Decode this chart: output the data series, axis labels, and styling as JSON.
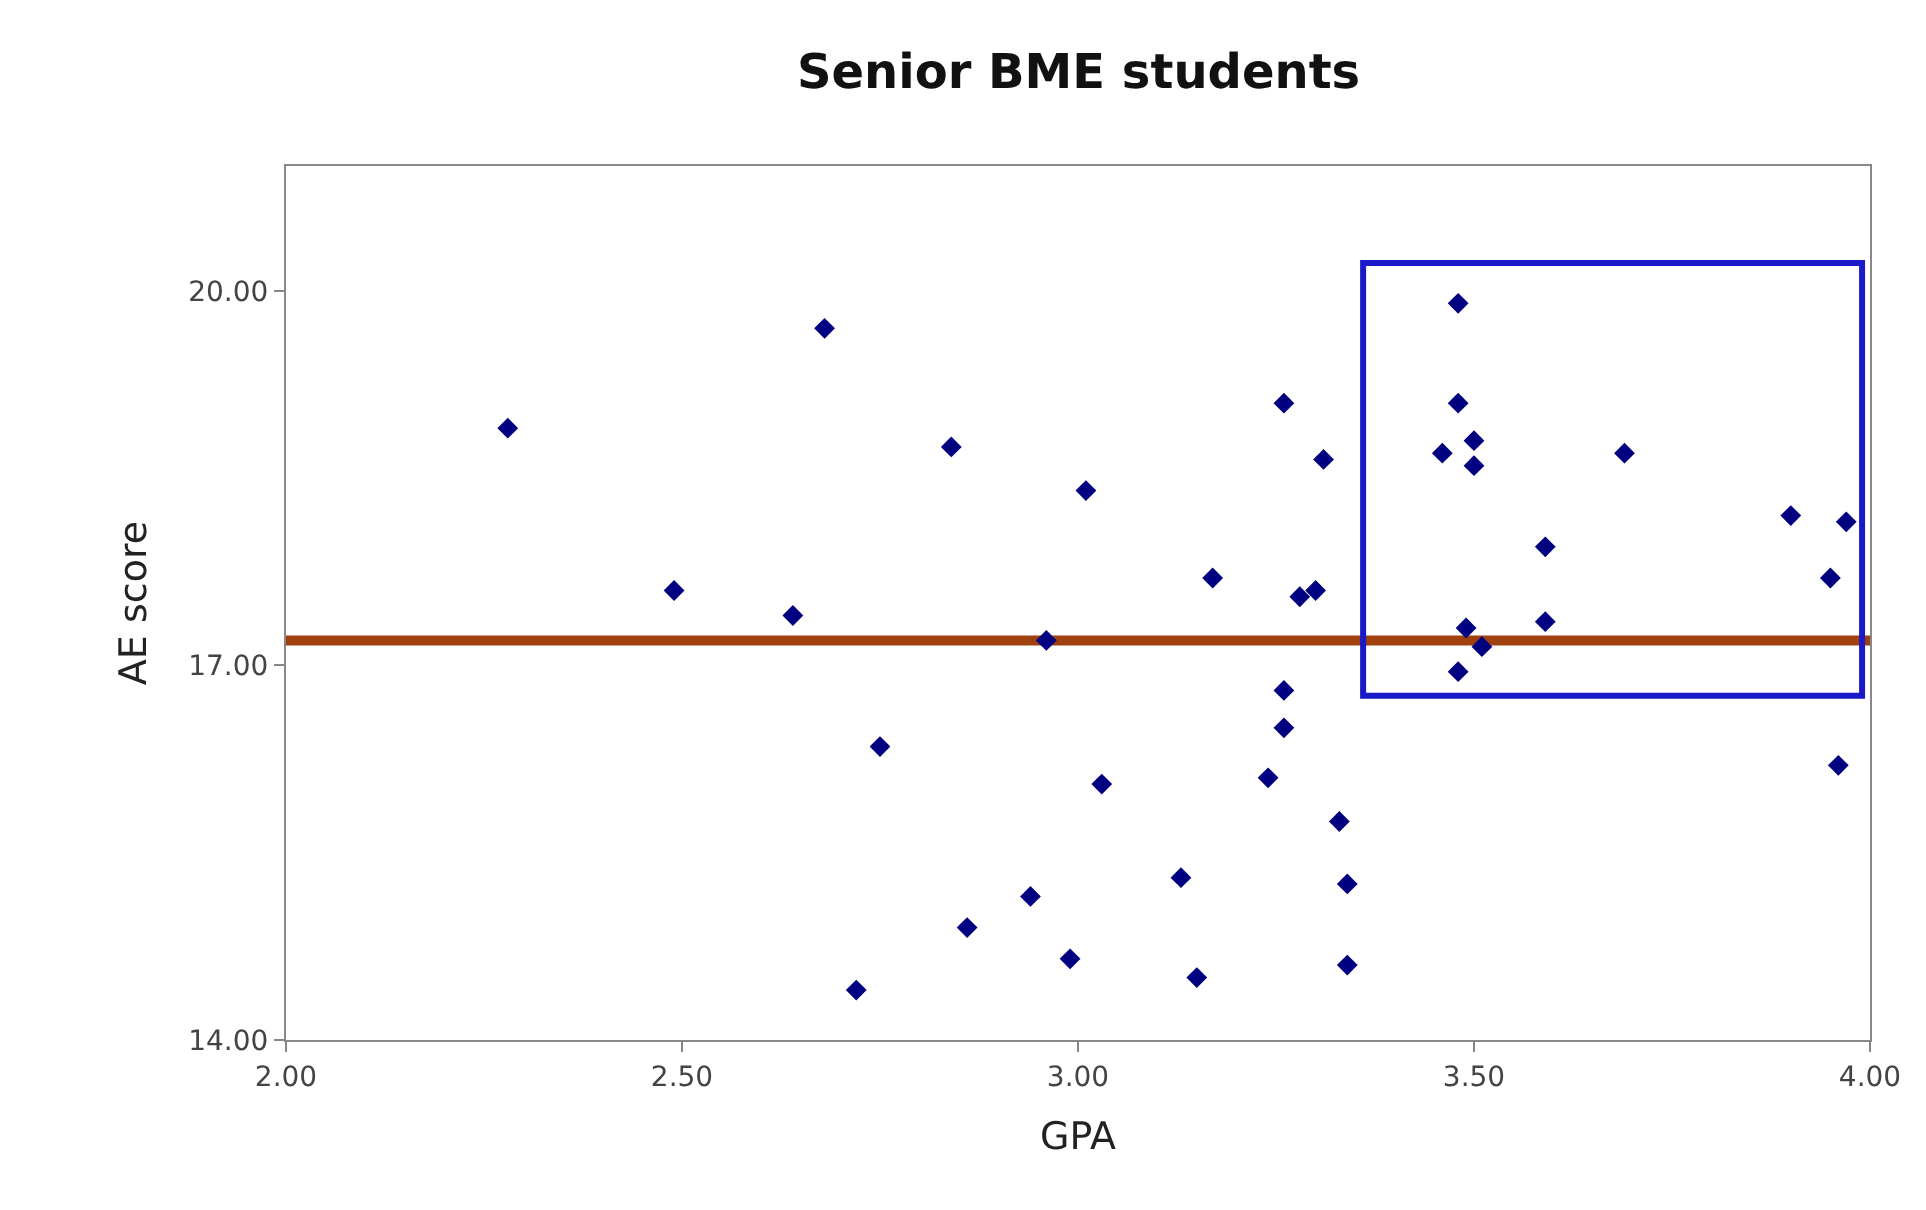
{
  "chart_data": {
    "type": "scatter",
    "title": "Senior BME students",
    "xlabel": "GPA",
    "ylabel": "AE score",
    "x": [
      2.28,
      2.68,
      2.49,
      2.64,
      2.84,
      3.01,
      3.26,
      3.31,
      3.17,
      3.28,
      3.3,
      3.26,
      3.26,
      2.75,
      3.03,
      3.24,
      3.33,
      3.34,
      3.34,
      3.13,
      2.94,
      2.86,
      2.99,
      3.15,
      2.72,
      2.96,
      3.48,
      3.48,
      3.46,
      3.5,
      3.5,
      3.69,
      3.59,
      3.9,
      3.97,
      3.95,
      3.59,
      3.49,
      3.51,
      3.48,
      3.96
    ],
    "series": [
      {
        "color": "#000080",
        "values": [
          18.9,
          19.7,
          17.6,
          17.4,
          18.75,
          18.4,
          19.1,
          18.65,
          17.7,
          17.55,
          17.6,
          16.8,
          16.5,
          16.35,
          16.05,
          16.1,
          15.75,
          15.25,
          14.6,
          15.3,
          15.15,
          14.9,
          14.65,
          14.5,
          14.4,
          17.2,
          19.9,
          19.1,
          18.7,
          18.8,
          18.6,
          18.7,
          17.95,
          18.2,
          18.15,
          17.7,
          17.35,
          17.3,
          17.15,
          16.95,
          16.2
        ]
      }
    ],
    "marker": "diamond",
    "xlim": [
      2.0,
      4.0
    ],
    "xticks": [
      {
        "value": 2.0,
        "label": "2.00"
      },
      {
        "value": 2.5,
        "label": "2.50"
      },
      {
        "value": 3.0,
        "label": "3.00"
      },
      {
        "value": 3.5,
        "label": "3.50"
      },
      {
        "value": 4.0,
        "label": "4.00"
      }
    ],
    "ylim": [
      14,
      21
    ],
    "yticks": [
      {
        "value": 14,
        "label": "14.00"
      },
      {
        "value": 17,
        "label": "17.00"
      },
      {
        "value": 20,
        "label": "20.00"
      }
    ],
    "ref_lines": [
      {
        "axis": "y",
        "value": 17.2,
        "color": "#a0400f"
      }
    ]
  }
}
